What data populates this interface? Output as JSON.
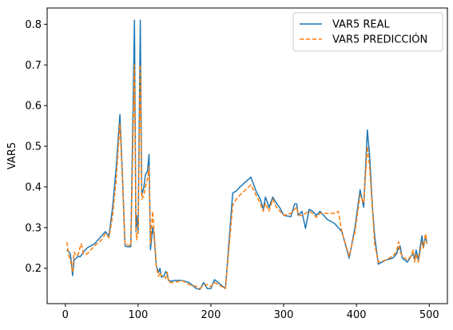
{
  "chart_data": {
    "type": "line",
    "title": "",
    "xlabel": "",
    "ylabel": "VAR5",
    "xlim": [
      -25,
      525
    ],
    "ylim": [
      0.113,
      0.84
    ],
    "xticks": [
      0,
      100,
      200,
      300,
      400,
      500
    ],
    "yticks": [
      0.2,
      0.3,
      0.4,
      0.5,
      0.6,
      0.7,
      0.8
    ],
    "xtick_labels": [
      "0",
      "100",
      "200",
      "300",
      "400",
      "500"
    ],
    "ytick_labels": [
      "0.2",
      "0.3",
      "0.4",
      "0.5",
      "0.6",
      "0.7",
      "0.8"
    ],
    "grid": false,
    "legend_position": "top-right",
    "series": [
      {
        "name": "VAR5 REAL",
        "color": "#1f77b4",
        "style": "solid",
        "x": [
          2,
          5,
          7,
          10,
          12,
          15,
          18,
          20,
          22,
          25,
          30,
          40,
          50,
          55,
          60,
          65,
          70,
          75,
          78,
          82,
          85,
          90,
          95,
          97,
          98,
          100,
          103,
          105,
          108,
          110,
          113,
          115,
          117,
          120,
          122,
          125,
          128,
          130,
          132,
          135,
          138,
          140,
          142,
          145,
          150,
          160,
          170,
          180,
          185,
          190,
          195,
          200,
          205,
          210,
          220,
          230,
          235,
          240,
          255,
          262,
          268,
          272,
          275,
          280,
          285,
          290,
          295,
          300,
          310,
          315,
          318,
          320,
          325,
          330,
          335,
          340,
          345,
          350,
          360,
          370,
          375,
          380,
          390,
          398,
          405,
          410,
          415,
          418,
          422,
          425,
          430,
          440,
          450,
          455,
          458,
          460,
          463,
          470,
          475,
          478,
          480,
          482,
          485,
          490,
          492,
          495,
          497
        ],
        "values": [
          0.245,
          0.24,
          0.235,
          0.182,
          0.22,
          0.225,
          0.23,
          0.228,
          0.232,
          0.24,
          0.25,
          0.26,
          0.28,
          0.29,
          0.28,
          0.35,
          0.45,
          0.578,
          0.45,
          0.255,
          0.253,
          0.253,
          0.81,
          0.29,
          0.33,
          0.285,
          0.81,
          0.38,
          0.4,
          0.43,
          0.44,
          0.48,
          0.245,
          0.3,
          0.28,
          0.205,
          0.19,
          0.2,
          0.178,
          0.18,
          0.192,
          0.185,
          0.17,
          0.168,
          0.17,
          0.17,
          0.165,
          0.15,
          0.148,
          0.165,
          0.15,
          0.15,
          0.172,
          0.165,
          0.15,
          0.385,
          0.39,
          0.4,
          0.424,
          0.39,
          0.37,
          0.345,
          0.375,
          0.35,
          0.375,
          0.36,
          0.348,
          0.33,
          0.327,
          0.358,
          0.358,
          0.33,
          0.34,
          0.298,
          0.345,
          0.34,
          0.33,
          0.34,
          0.32,
          0.31,
          0.3,
          0.29,
          0.225,
          0.3,
          0.393,
          0.35,
          0.54,
          0.48,
          0.35,
          0.28,
          0.21,
          0.22,
          0.225,
          0.235,
          0.25,
          0.255,
          0.225,
          0.215,
          0.23,
          0.235,
          0.22,
          0.245,
          0.22,
          0.28,
          0.25,
          0.28,
          0.26
        ]
      },
      {
        "name": "VAR5 PREDICCIÓN",
        "color": "#ff7f0e",
        "style": "dashed",
        "x": [
          2,
          5,
          7,
          10,
          12,
          15,
          18,
          20,
          22,
          25,
          30,
          40,
          50,
          55,
          60,
          65,
          70,
          75,
          78,
          82,
          85,
          90,
          95,
          97,
          98,
          100,
          103,
          105,
          108,
          110,
          113,
          115,
          117,
          120,
          122,
          125,
          128,
          130,
          132,
          135,
          138,
          140,
          142,
          145,
          150,
          160,
          170,
          180,
          185,
          190,
          195,
          200,
          205,
          210,
          220,
          230,
          235,
          240,
          255,
          262,
          268,
          272,
          275,
          280,
          285,
          290,
          295,
          300,
          310,
          315,
          318,
          320,
          325,
          330,
          335,
          340,
          345,
          350,
          360,
          370,
          375,
          380,
          390,
          398,
          405,
          410,
          415,
          418,
          422,
          425,
          430,
          440,
          450,
          455,
          458,
          460,
          463,
          470,
          475,
          478,
          480,
          482,
          485,
          490,
          492,
          495,
          497
        ],
        "values": [
          0.265,
          0.23,
          0.22,
          0.19,
          0.24,
          0.23,
          0.235,
          0.25,
          0.26,
          0.235,
          0.235,
          0.255,
          0.27,
          0.285,
          0.275,
          0.33,
          0.42,
          0.555,
          0.44,
          0.258,
          0.258,
          0.255,
          0.7,
          0.3,
          0.27,
          0.29,
          0.7,
          0.37,
          0.38,
          0.4,
          0.42,
          0.45,
          0.26,
          0.34,
          0.29,
          0.205,
          0.18,
          0.19,
          0.182,
          0.18,
          0.175,
          0.19,
          0.165,
          0.165,
          0.165,
          0.17,
          0.16,
          0.155,
          0.15,
          0.158,
          0.16,
          0.155,
          0.165,
          0.16,
          0.15,
          0.355,
          0.37,
          0.38,
          0.405,
          0.38,
          0.36,
          0.34,
          0.36,
          0.34,
          0.37,
          0.35,
          0.34,
          0.33,
          0.335,
          0.345,
          0.35,
          0.33,
          0.33,
          0.335,
          0.34,
          0.335,
          0.325,
          0.335,
          0.335,
          0.335,
          0.34,
          0.29,
          0.23,
          0.29,
          0.38,
          0.36,
          0.5,
          0.45,
          0.345,
          0.26,
          0.215,
          0.22,
          0.23,
          0.24,
          0.265,
          0.24,
          0.23,
          0.22,
          0.23,
          0.245,
          0.215,
          0.235,
          0.215,
          0.265,
          0.25,
          0.285,
          0.26
        ]
      }
    ]
  }
}
